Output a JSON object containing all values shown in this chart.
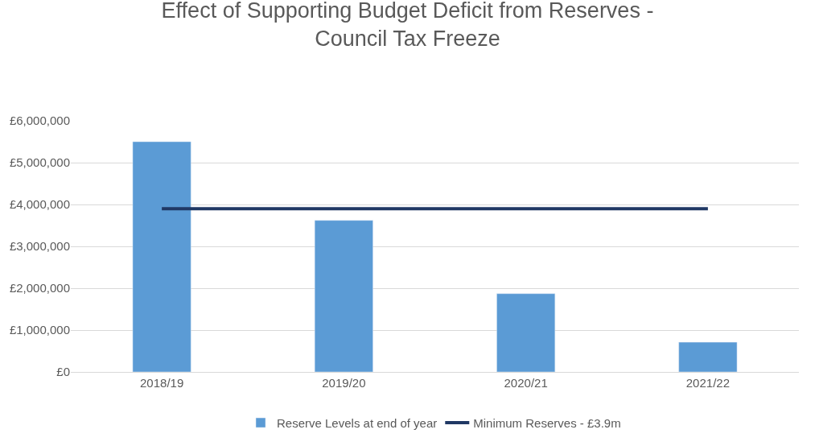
{
  "chart_data": {
    "type": "bar",
    "title": "Effect of Supporting Budget Deficit from Reserves -\nCouncil Tax Freeze",
    "categories": [
      "2018/19",
      "2019/20",
      "2020/21",
      "2021/22"
    ],
    "series": [
      {
        "name": "Reserve Levels at end of year",
        "color": "#5b9bd5",
        "values": [
          5500000,
          3620000,
          1870000,
          710000
        ]
      },
      {
        "name": "Minimum Reserves - £3.9m",
        "type": "line",
        "color": "#203864",
        "values": [
          3900000,
          3900000,
          3900000,
          3900000
        ]
      }
    ],
    "ylim": [
      0,
      6000000
    ],
    "yticks": [
      {
        "value": 0,
        "label": "£0"
      },
      {
        "value": 1000000,
        "label": "£1,000,000"
      },
      {
        "value": 2000000,
        "label": "£2,000,000"
      },
      {
        "value": 3000000,
        "label": "£3,000,000"
      },
      {
        "value": 4000000,
        "label": "£4,000,000"
      },
      {
        "value": 5000000,
        "label": "£5,000,000"
      },
      {
        "value": 6000000,
        "label": "£6,000,000"
      }
    ],
    "grid": "y",
    "legend": "bottom"
  }
}
